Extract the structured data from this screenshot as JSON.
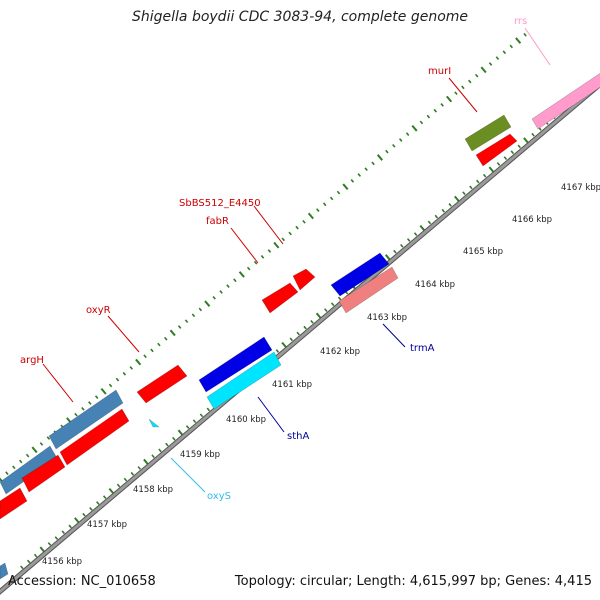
{
  "title": "Shigella boydii CDC 3083-94, complete genome",
  "footer": {
    "accession": "Accession: NC_010658",
    "topology": "Topology: circular; Length: 4,615,997 bp; Genes: 4,415"
  },
  "colors": {
    "backbone": "#8c8c8c",
    "tick": "#2e7d22",
    "tick_label": "#222222",
    "gene_red": "#ff0000",
    "gene_steelblue": "#4682b4",
    "gene_blue": "#0000e6",
    "gene_cyan": "#00e5ff",
    "gene_salmon": "#f08080",
    "gene_olive": "#6b8e23",
    "gene_pink": "#ff9ccc",
    "label_red": "#cc0000",
    "label_blue": "#000099",
    "label_cyan": "#33bbee",
    "label_pink": "#ff99cc"
  },
  "scale_labels": [
    "4156 kbp",
    "4157 kbp",
    "4158 kbp",
    "4159 kbp",
    "4160 kbp",
    "4161 kbp",
    "4162 kbp",
    "4163 kbp",
    "4164 kbp",
    "4165 kbp",
    "4166 kbp",
    "4167 kbp"
  ],
  "genes": [
    {
      "name": "rrs",
      "color": "label_pink"
    },
    {
      "name": "murI",
      "color": "label_red"
    },
    {
      "name": "SbBS512_E4450",
      "color": "label_red"
    },
    {
      "name": "fabR",
      "color": "label_red"
    },
    {
      "name": "oxyR",
      "color": "label_red"
    },
    {
      "name": "argH",
      "color": "label_red"
    },
    {
      "name": "trmA",
      "color": "label_blue"
    },
    {
      "name": "sthA",
      "color": "label_blue"
    },
    {
      "name": "oxyS",
      "color": "label_cyan"
    }
  ]
}
